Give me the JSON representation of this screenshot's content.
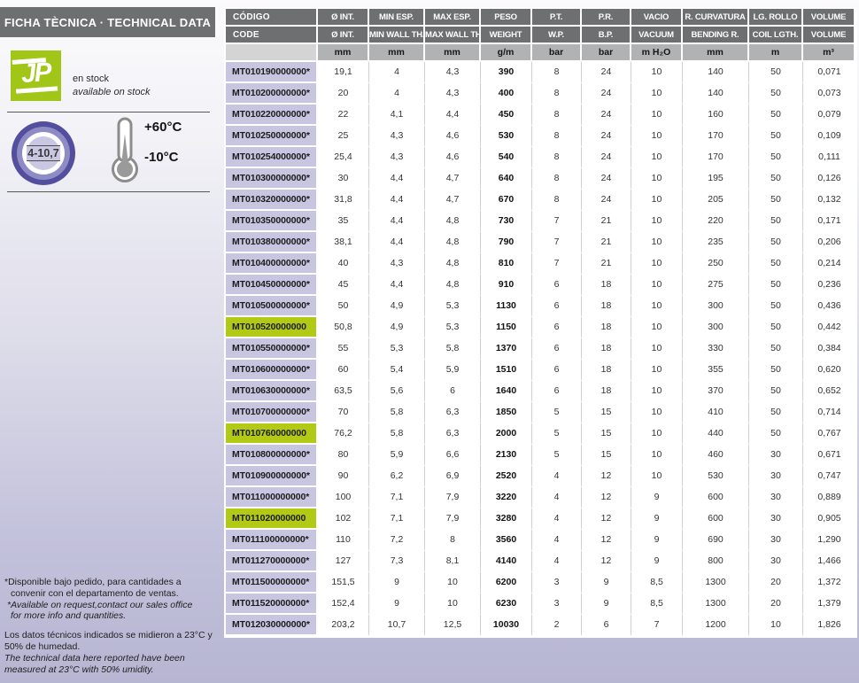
{
  "left_panel": {
    "title": "FICHA TÈCNICA · TECHNICAL DATA",
    "logo_text": "JP",
    "stock_line_es": "en stock",
    "stock_line_en": "available on stock",
    "diameter_range": "4-10,7",
    "temperature_max": "+60°C",
    "temperature_min": "-10°C",
    "footnotes": [
      {
        "lang": "es",
        "hang": true,
        "gap": false,
        "lines": [
          "*Disponible bajo pedido, para cantidades a",
          "convenir con el departamento de ventas."
        ]
      },
      {
        "lang": "en",
        "hang": true,
        "gap": false,
        "lines": [
          "*Available on request,contact our sales office",
          "for more info and quantities."
        ]
      },
      {
        "lang": "es",
        "hang": false,
        "gap": true,
        "lines": [
          "Los datos técnicos indicados se midieron a 23°C y",
          "50% de humedad."
        ]
      },
      {
        "lang": "en",
        "hang": false,
        "gap": false,
        "lines": [
          "The technical data here reported have been",
          "measured at 23°C with 50% umidity."
        ]
      }
    ]
  },
  "table": {
    "headers_row1": [
      "CÓDIGO",
      "Ø INT.",
      "MIN ESP.",
      "MAX ESP.",
      "PESO",
      "P.T.",
      "P.R.",
      "VACIO",
      "R. CURVATURA",
      "LG. ROLLO",
      "VOLUME"
    ],
    "headers_row2": [
      "CODE",
      "Ø INT.",
      "MIN WALL TH.",
      "MAX WALL TH.",
      "WEIGHT",
      "W.P.",
      "B.P.",
      "VACUUM",
      "BENDING R.",
      "COIL LGTH.",
      "VOLUME"
    ],
    "units": [
      "",
      "mm",
      "mm",
      "mm",
      "g/m",
      "bar",
      "bar",
      "m H₂O",
      "mm",
      "m",
      "m³"
    ],
    "rows": [
      {
        "code": "MT010190000000*",
        "highlight": false,
        "values": [
          "19,1",
          "4",
          "4,3",
          "390",
          "8",
          "24",
          "10",
          "140",
          "50",
          "0,071"
        ]
      },
      {
        "code": "MT010200000000*",
        "highlight": false,
        "values": [
          "20",
          "4",
          "4,3",
          "400",
          "8",
          "24",
          "10",
          "140",
          "50",
          "0,073"
        ]
      },
      {
        "code": "MT010220000000*",
        "highlight": false,
        "values": [
          "22",
          "4,1",
          "4,4",
          "450",
          "8",
          "24",
          "10",
          "160",
          "50",
          "0,079"
        ]
      },
      {
        "code": "MT010250000000*",
        "highlight": false,
        "values": [
          "25",
          "4,3",
          "4,6",
          "530",
          "8",
          "24",
          "10",
          "170",
          "50",
          "0,109"
        ]
      },
      {
        "code": "MT010254000000*",
        "highlight": false,
        "values": [
          "25,4",
          "4,3",
          "4,6",
          "540",
          "8",
          "24",
          "10",
          "170",
          "50",
          "0,111"
        ]
      },
      {
        "code": "MT010300000000*",
        "highlight": false,
        "values": [
          "30",
          "4,4",
          "4,7",
          "640",
          "8",
          "24",
          "10",
          "195",
          "50",
          "0,126"
        ]
      },
      {
        "code": "MT010320000000*",
        "highlight": false,
        "values": [
          "31,8",
          "4,4",
          "4,7",
          "670",
          "8",
          "24",
          "10",
          "205",
          "50",
          "0,132"
        ]
      },
      {
        "code": "MT010350000000*",
        "highlight": false,
        "values": [
          "35",
          "4,4",
          "4,8",
          "730",
          "7",
          "21",
          "10",
          "220",
          "50",
          "0,171"
        ]
      },
      {
        "code": "MT010380000000*",
        "highlight": false,
        "values": [
          "38,1",
          "4,4",
          "4,8",
          "790",
          "7",
          "21",
          "10",
          "235",
          "50",
          "0,206"
        ]
      },
      {
        "code": "MT010400000000*",
        "highlight": false,
        "values": [
          "40",
          "4,3",
          "4,8",
          "810",
          "7",
          "21",
          "10",
          "250",
          "50",
          "0,214"
        ]
      },
      {
        "code": "MT010450000000*",
        "highlight": false,
        "values": [
          "45",
          "4,4",
          "4,8",
          "910",
          "6",
          "18",
          "10",
          "275",
          "50",
          "0,236"
        ]
      },
      {
        "code": "MT010500000000*",
        "highlight": false,
        "values": [
          "50",
          "4,9",
          "5,3",
          "1130",
          "6",
          "18",
          "10",
          "300",
          "50",
          "0,436"
        ]
      },
      {
        "code": "MT010520000000",
        "highlight": true,
        "values": [
          "50,8",
          "4,9",
          "5,3",
          "1150",
          "6",
          "18",
          "10",
          "300",
          "50",
          "0,442"
        ]
      },
      {
        "code": "MT010550000000*",
        "highlight": false,
        "values": [
          "55",
          "5,3",
          "5,8",
          "1370",
          "6",
          "18",
          "10",
          "330",
          "50",
          "0,384"
        ]
      },
      {
        "code": "MT010600000000*",
        "highlight": false,
        "values": [
          "60",
          "5,4",
          "5,9",
          "1510",
          "6",
          "18",
          "10",
          "355",
          "50",
          "0,620"
        ]
      },
      {
        "code": "MT010630000000*",
        "highlight": false,
        "values": [
          "63,5",
          "5,6",
          "6",
          "1640",
          "6",
          "18",
          "10",
          "370",
          "50",
          "0,652"
        ]
      },
      {
        "code": "MT010700000000*",
        "highlight": false,
        "values": [
          "70",
          "5,8",
          "6,3",
          "1850",
          "5",
          "15",
          "10",
          "410",
          "50",
          "0,714"
        ]
      },
      {
        "code": "MT010760000000",
        "highlight": true,
        "values": [
          "76,2",
          "5,8",
          "6,3",
          "2000",
          "5",
          "15",
          "10",
          "440",
          "50",
          "0,767"
        ]
      },
      {
        "code": "MT010800000000*",
        "highlight": false,
        "values": [
          "80",
          "5,9",
          "6,6",
          "2130",
          "5",
          "15",
          "10",
          "460",
          "30",
          "0,671"
        ]
      },
      {
        "code": "MT010900000000*",
        "highlight": false,
        "values": [
          "90",
          "6,2",
          "6,9",
          "2520",
          "4",
          "12",
          "10",
          "530",
          "30",
          "0,747"
        ]
      },
      {
        "code": "MT011000000000*",
        "highlight": false,
        "values": [
          "100",
          "7,1",
          "7,9",
          "3220",
          "4",
          "12",
          "9",
          "600",
          "30",
          "0,889"
        ]
      },
      {
        "code": "MT011020000000",
        "highlight": true,
        "values": [
          "102",
          "7,1",
          "7,9",
          "3280",
          "4",
          "12",
          "9",
          "600",
          "30",
          "0,905"
        ]
      },
      {
        "code": "MT011100000000*",
        "highlight": false,
        "values": [
          "110",
          "7,2",
          "8",
          "3560",
          "4",
          "12",
          "9",
          "690",
          "30",
          "1,290"
        ]
      },
      {
        "code": "MT011270000000*",
        "highlight": false,
        "values": [
          "127",
          "7,3",
          "8,1",
          "4140",
          "4",
          "12",
          "9",
          "800",
          "30",
          "1,466"
        ]
      },
      {
        "code": "MT011500000000*",
        "highlight": false,
        "values": [
          "151,5",
          "9",
          "10",
          "6200",
          "3",
          "9",
          "8,5",
          "1300",
          "20",
          "1,372"
        ]
      },
      {
        "code": "MT011520000000*",
        "highlight": false,
        "values": [
          "152,4",
          "9",
          "10",
          "6230",
          "3",
          "9",
          "8,5",
          "1300",
          "20",
          "1,379"
        ]
      },
      {
        "code": "MT012030000000*",
        "highlight": false,
        "values": [
          "203,2",
          "10,7",
          "12,5",
          "10030",
          "2",
          "6",
          "7",
          "1200",
          "10",
          "1,826"
        ]
      }
    ]
  },
  "colors": {
    "header_gray": "#6e6f71",
    "units_gray": "#b1b2b4",
    "units_first_gray": "#d4d4d4",
    "code_purple": "#c7c5df",
    "highlight_green": "#b2c916",
    "logo_green": "#a2c617",
    "ring_outer_purple": "#534e9d",
    "ring_mid_purple": "#8f8bc5",
    "background_lavender": "#b7b6d2"
  }
}
